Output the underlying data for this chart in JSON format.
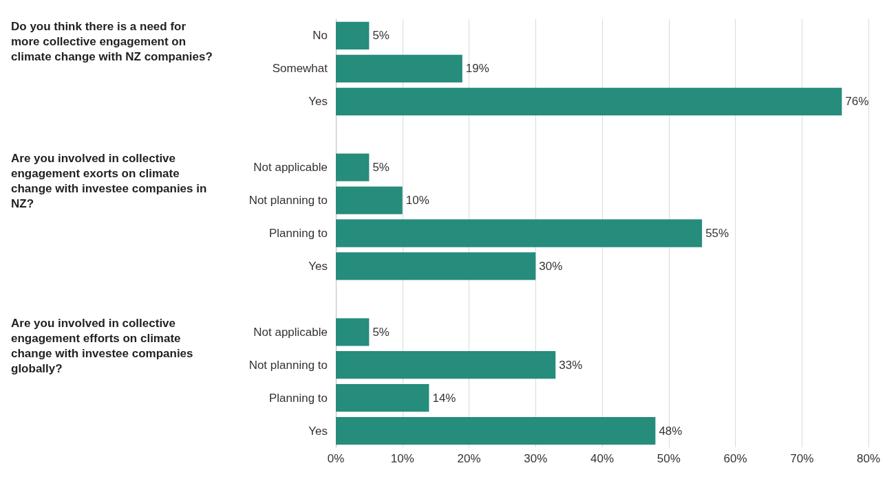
{
  "chart_data": {
    "type": "bar",
    "orientation": "horizontal",
    "categories": [
      "No",
      "Somewhat",
      "Yes",
      null,
      "Not applicable",
      "Not planning to",
      "Planning to",
      "Yes",
      null,
      "Not applicable",
      "Not planning to",
      "Planning to",
      "Yes"
    ],
    "values": [
      5,
      19,
      76,
      null,
      5,
      10,
      55,
      30,
      null,
      5,
      33,
      14,
      48
    ],
    "value_labels": [
      "5%",
      "19%",
      "76%",
      null,
      "5%",
      "10%",
      "55%",
      "30%",
      null,
      "5%",
      "33%",
      "14%",
      "48%"
    ],
    "color": "#268c7c",
    "xlim": [
      0,
      80
    ],
    "xticks": [
      {
        "value": 0,
        "label": "0%"
      },
      {
        "value": 10,
        "label": "10%"
      },
      {
        "value": 20,
        "label": "20%"
      },
      {
        "value": 30,
        "label": "30%"
      },
      {
        "value": 40,
        "label": "40%"
      },
      {
        "value": 50,
        "label": "50%"
      },
      {
        "value": 60,
        "label": "60%"
      },
      {
        "value": 70,
        "label": "70%"
      },
      {
        "value": 80,
        "label": "80%"
      }
    ],
    "grid": "x",
    "annotations": [
      "Do you think there is a need for more collective engagement on climate change with NZ companies?",
      "Are you involved in collective engagement exorts on climate change with investee companies in NZ?",
      "Are you involved in collective engagement efforts on climate change with investee companies globally?"
    ]
  }
}
